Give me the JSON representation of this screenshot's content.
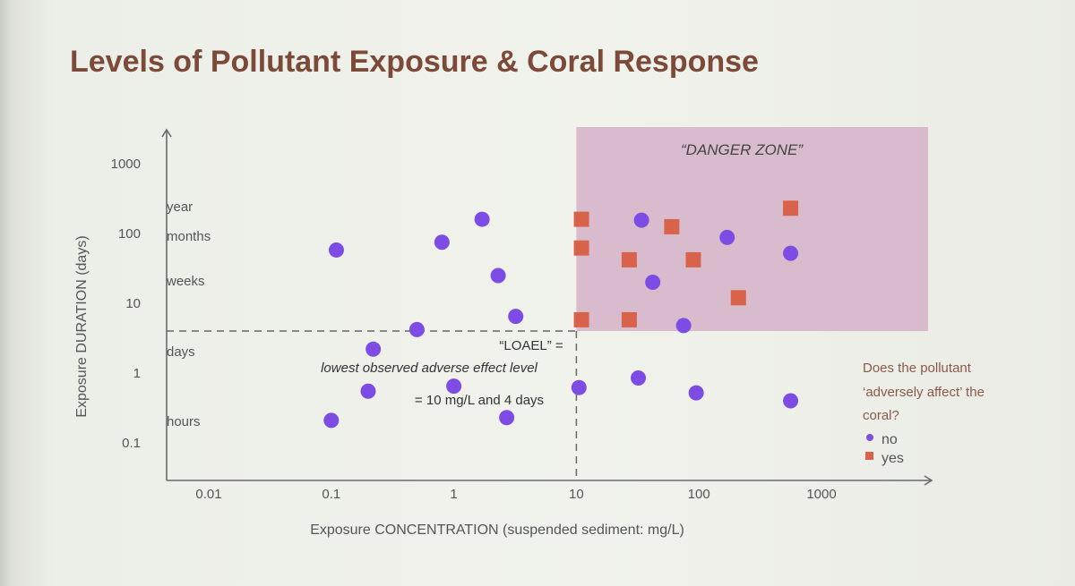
{
  "colors": {
    "no": "#7c4ce4",
    "yes": "#d9634a",
    "danger_zone": "#d4b1c8",
    "title": "#7b4a39",
    "axis": "#6a6a6a"
  },
  "chart_data": {
    "type": "scatter",
    "title": "Levels of Pollutant Exposure & Coral Response",
    "xlabel": "Exposure CONCENTRATION (suspended sediment: mg/L)",
    "ylabel": "Exposure DURATION (days)",
    "x_scale": "log",
    "y_scale": "log",
    "x_ticks": [
      "0.01",
      "0.1",
      "1",
      "10",
      "100",
      "1000"
    ],
    "y_ticks": [
      "0.1",
      "1",
      "10",
      "100",
      "1000"
    ],
    "xlim": [
      0.003,
      2500
    ],
    "ylim": [
      0.03,
      3000
    ],
    "duration_labels": [
      "year",
      "months",
      "weeks",
      "days",
      "hours"
    ],
    "danger_zone": {
      "label": "“DANGER ZONE”",
      "x_range": [
        10,
        2500
      ],
      "y_range": [
        4,
        500
      ]
    },
    "loael": {
      "x": 10,
      "y": 4,
      "lines": [
        "“LOAEL” =",
        "lowest observed adverse effect level",
        "= 10 mg/L and 4 days"
      ]
    },
    "legend": {
      "question_lines": [
        "Does the pollutant",
        "‘adversely affect’ the",
        "coral?"
      ],
      "items": [
        {
          "label": "no",
          "marker": "circle"
        },
        {
          "label": "yes",
          "marker": "square"
        }
      ]
    },
    "series": [
      {
        "name": "no",
        "marker": "circle",
        "points": [
          [
            0.11,
            58
          ],
          [
            0.8,
            75
          ],
          [
            1.7,
            160
          ],
          [
            2.3,
            25
          ],
          [
            3.2,
            6.5
          ],
          [
            0.22,
            2.2
          ],
          [
            0.5,
            4.2
          ],
          [
            0.2,
            0.55
          ],
          [
            1.0,
            0.65
          ],
          [
            2.7,
            0.23
          ],
          [
            0.1,
            0.21
          ],
          [
            10.5,
            0.62
          ],
          [
            32,
            0.85
          ],
          [
            34,
            155
          ],
          [
            42,
            20
          ],
          [
            75,
            4.8
          ],
          [
            95,
            0.52
          ],
          [
            170,
            88
          ],
          [
            560,
            52
          ],
          [
            560,
            0.4
          ]
        ]
      },
      {
        "name": "yes",
        "marker": "square",
        "points": [
          [
            11,
            160
          ],
          [
            11,
            62
          ],
          [
            11,
            5.8
          ],
          [
            27,
            42
          ],
          [
            27,
            5.8
          ],
          [
            60,
            125
          ],
          [
            90,
            42
          ],
          [
            210,
            12
          ],
          [
            560,
            230
          ]
        ]
      }
    ]
  }
}
